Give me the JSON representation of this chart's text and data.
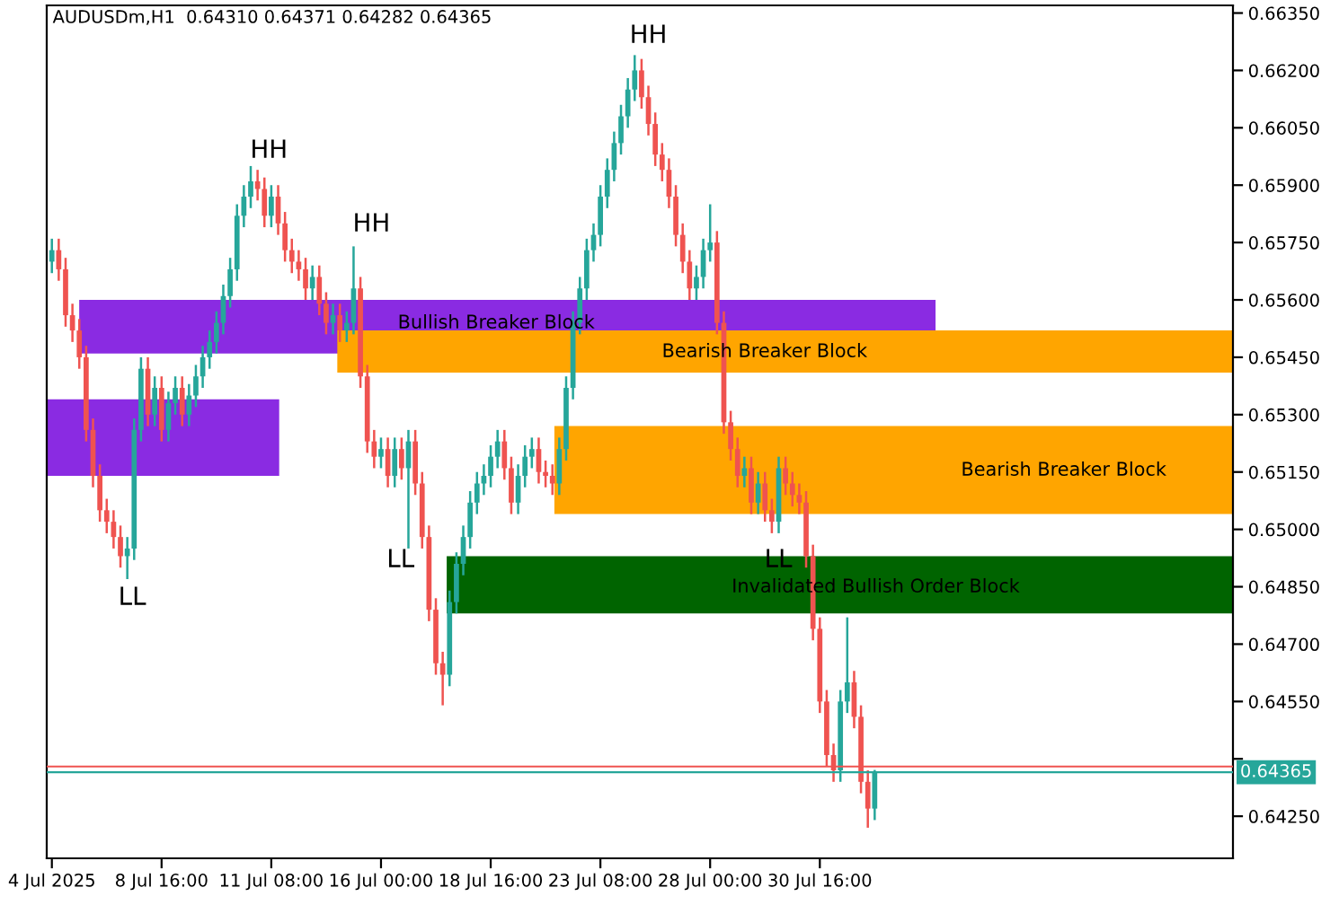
{
  "chart_data": {
    "type": "candlestick",
    "title": "AUDUSDm,H1  0.64310 0.64371 0.64282 0.64365",
    "categories": [
      "4 Jul 2025",
      null,
      null,
      null,
      null,
      null,
      null,
      null,
      null,
      null,
      null,
      null,
      null,
      null,
      null,
      null,
      "8 Jul 16:00",
      null,
      null,
      null,
      null,
      null,
      null,
      null,
      null,
      null,
      null,
      null,
      null,
      null,
      null,
      null,
      "11 Jul 08:00",
      null,
      null,
      null,
      null,
      null,
      null,
      null,
      null,
      null,
      null,
      null,
      null,
      null,
      null,
      null,
      "16 Jul 00:00",
      null,
      null,
      null,
      null,
      null,
      null,
      null,
      null,
      null,
      null,
      null,
      null,
      null,
      null,
      null,
      "18 Jul 16:00",
      null,
      null,
      null,
      null,
      null,
      null,
      null,
      null,
      null,
      null,
      null,
      null,
      null,
      null,
      null,
      "23 Jul 08:00",
      null,
      null,
      null,
      null,
      null,
      null,
      null,
      null,
      null,
      null,
      null,
      null,
      null,
      null,
      null,
      "28 Jul 00:00",
      null,
      null,
      null,
      null,
      null,
      null,
      null,
      null,
      null,
      null,
      null,
      null,
      null,
      null,
      null,
      "30 Jul 16:00",
      null,
      null,
      null,
      null,
      null,
      null,
      null,
      null,
      null,
      null,
      null,
      null,
      null,
      null,
      null,
      null,
      null,
      null,
      null,
      null,
      null,
      null,
      null,
      null,
      null,
      null,
      null,
      null,
      null,
      null,
      null,
      null,
      null,
      null,
      null,
      null,
      null,
      null,
      null,
      null,
      null,
      null,
      null,
      null,
      null,
      null,
      null,
      null,
      null,
      null,
      null,
      null,
      null,
      null,
      null,
      null,
      null,
      null,
      null,
      null
    ],
    "ohlc": [
      [
        0.657,
        0.6576,
        0.6567,
        0.6573
      ],
      [
        0.6573,
        0.6576,
        0.6565,
        0.6568
      ],
      [
        0.6568,
        0.6571,
        0.6553,
        0.6556
      ],
      [
        0.6556,
        0.6559,
        0.6549,
        0.6552
      ],
      [
        0.6552,
        0.6555,
        0.6542,
        0.6545
      ],
      [
        0.6545,
        0.6548,
        0.6523,
        0.6526
      ],
      [
        0.6526,
        0.6529,
        0.6511,
        0.6514
      ],
      [
        0.6514,
        0.6517,
        0.6502,
        0.6505
      ],
      [
        0.6505,
        0.6508,
        0.6499,
        0.6502
      ],
      [
        0.6502,
        0.6505,
        0.6495,
        0.6498
      ],
      [
        0.6498,
        0.6501,
        0.649,
        0.6493
      ],
      [
        0.6493,
        0.6498,
        0.6487,
        0.6495
      ],
      [
        0.6495,
        0.6529,
        0.6492,
        0.6526
      ],
      [
        0.6526,
        0.6545,
        0.6523,
        0.6542
      ],
      [
        0.6542,
        0.6545,
        0.6527,
        0.653
      ],
      [
        0.653,
        0.654,
        0.6527,
        0.6537
      ],
      [
        0.6537,
        0.654,
        0.6523,
        0.6526
      ],
      [
        0.6526,
        0.6536,
        0.6523,
        0.6533
      ],
      [
        0.6533,
        0.654,
        0.653,
        0.6537
      ],
      [
        0.6537,
        0.654,
        0.6527,
        0.653
      ],
      [
        0.653,
        0.6538,
        0.6527,
        0.6535
      ],
      [
        0.6535,
        0.6543,
        0.6532,
        0.654
      ],
      [
        0.654,
        0.6548,
        0.6537,
        0.6545
      ],
      [
        0.6545,
        0.6552,
        0.6542,
        0.6549
      ],
      [
        0.6549,
        0.6557,
        0.6546,
        0.6554
      ],
      [
        0.6554,
        0.6564,
        0.6551,
        0.6561
      ],
      [
        0.6561,
        0.6571,
        0.6558,
        0.6568
      ],
      [
        0.6568,
        0.6585,
        0.6565,
        0.6582
      ],
      [
        0.6582,
        0.659,
        0.6579,
        0.6587
      ],
      [
        0.6587,
        0.6595,
        0.6584,
        0.6591
      ],
      [
        0.6591,
        0.6594,
        0.6586,
        0.6589
      ],
      [
        0.6589,
        0.6592,
        0.6579,
        0.6582
      ],
      [
        0.6582,
        0.659,
        0.6579,
        0.6587
      ],
      [
        0.6587,
        0.659,
        0.6577,
        0.658
      ],
      [
        0.658,
        0.6583,
        0.657,
        0.6573
      ],
      [
        0.6573,
        0.6576,
        0.6567,
        0.657
      ],
      [
        0.657,
        0.6573,
        0.6565,
        0.6568
      ],
      [
        0.6568,
        0.6571,
        0.656,
        0.6563
      ],
      [
        0.6563,
        0.6569,
        0.656,
        0.6566
      ],
      [
        0.6566,
        0.6569,
        0.6556,
        0.6559
      ],
      [
        0.6559,
        0.6562,
        0.6551,
        0.6554
      ],
      [
        0.6554,
        0.6559,
        0.6551,
        0.6556
      ],
      [
        0.6556,
        0.6559,
        0.6549,
        0.6552
      ],
      [
        0.6552,
        0.6557,
        0.6549,
        0.6554
      ],
      [
        0.6554,
        0.6574,
        0.6551,
        0.6563
      ],
      [
        0.6563,
        0.6566,
        0.6537,
        0.654
      ],
      [
        0.654,
        0.6543,
        0.652,
        0.6523
      ],
      [
        0.6523,
        0.6526,
        0.6516,
        0.6519
      ],
      [
        0.6519,
        0.6524,
        0.6516,
        0.6521
      ],
      [
        0.6521,
        0.6524,
        0.6511,
        0.6514
      ],
      [
        0.6514,
        0.6524,
        0.6511,
        0.6521
      ],
      [
        0.6521,
        0.6524,
        0.6513,
        0.6516
      ],
      [
        0.6516,
        0.6526,
        0.6495,
        0.6523
      ],
      [
        0.6523,
        0.6526,
        0.6509,
        0.6512
      ],
      [
        0.6512,
        0.6515,
        0.6495,
        0.6498
      ],
      [
        0.6498,
        0.6501,
        0.6476,
        0.6479
      ],
      [
        0.6479,
        0.6482,
        0.6462,
        0.6465
      ],
      [
        0.6465,
        0.6468,
        0.6454,
        0.6462
      ],
      [
        0.6462,
        0.6484,
        0.6459,
        0.6481
      ],
      [
        0.6481,
        0.6494,
        0.6478,
        0.6491
      ],
      [
        0.6491,
        0.6501,
        0.6488,
        0.6498
      ],
      [
        0.6498,
        0.651,
        0.6495,
        0.6507
      ],
      [
        0.6507,
        0.6515,
        0.6504,
        0.6512
      ],
      [
        0.6512,
        0.6517,
        0.6509,
        0.6514
      ],
      [
        0.6514,
        0.6522,
        0.6511,
        0.6519
      ],
      [
        0.6519,
        0.6526,
        0.6516,
        0.6523
      ],
      [
        0.6523,
        0.6526,
        0.6513,
        0.6516
      ],
      [
        0.6516,
        0.6519,
        0.6504,
        0.6507
      ],
      [
        0.6507,
        0.6517,
        0.6504,
        0.6514
      ],
      [
        0.6514,
        0.6522,
        0.6511,
        0.6519
      ],
      [
        0.6519,
        0.6524,
        0.6516,
        0.6521
      ],
      [
        0.6521,
        0.6524,
        0.6512,
        0.6515
      ],
      [
        0.6515,
        0.6518,
        0.6511,
        0.6514
      ],
      [
        0.6514,
        0.6517,
        0.6509,
        0.6512
      ],
      [
        0.6512,
        0.6524,
        0.6509,
        0.6521
      ],
      [
        0.6521,
        0.654,
        0.6518,
        0.6537
      ],
      [
        0.6537,
        0.6557,
        0.6534,
        0.6554
      ],
      [
        0.6554,
        0.6566,
        0.6551,
        0.6563
      ],
      [
        0.6563,
        0.6576,
        0.656,
        0.6573
      ],
      [
        0.6573,
        0.658,
        0.657,
        0.6577
      ],
      [
        0.6577,
        0.659,
        0.6574,
        0.6587
      ],
      [
        0.6587,
        0.6597,
        0.6584,
        0.6594
      ],
      [
        0.6594,
        0.6604,
        0.6591,
        0.6601
      ],
      [
        0.6601,
        0.6611,
        0.6598,
        0.6608
      ],
      [
        0.6608,
        0.6618,
        0.6605,
        0.6615
      ],
      [
        0.6615,
        0.6624,
        0.6612,
        0.662
      ],
      [
        0.662,
        0.6623,
        0.661,
        0.6613
      ],
      [
        0.6613,
        0.6616,
        0.6603,
        0.6606
      ],
      [
        0.6606,
        0.6609,
        0.6595,
        0.6598
      ],
      [
        0.6598,
        0.6601,
        0.6591,
        0.6594
      ],
      [
        0.6594,
        0.6597,
        0.6584,
        0.6587
      ],
      [
        0.6587,
        0.659,
        0.6574,
        0.6577
      ],
      [
        0.6577,
        0.658,
        0.6567,
        0.657
      ],
      [
        0.657,
        0.6573,
        0.656,
        0.6563
      ],
      [
        0.6563,
        0.6569,
        0.656,
        0.6566
      ],
      [
        0.6566,
        0.6576,
        0.6563,
        0.6573
      ],
      [
        0.6573,
        0.6585,
        0.657,
        0.6575
      ],
      [
        0.6575,
        0.6578,
        0.6551,
        0.6554
      ],
      [
        0.6554,
        0.6557,
        0.6525,
        0.6528
      ],
      [
        0.6528,
        0.6531,
        0.6518,
        0.6521
      ],
      [
        0.6521,
        0.6524,
        0.6511,
        0.6514
      ],
      [
        0.6514,
        0.6519,
        0.6511,
        0.6516
      ],
      [
        0.6516,
        0.6519,
        0.6504,
        0.6507
      ],
      [
        0.6507,
        0.6515,
        0.6504,
        0.6512
      ],
      [
        0.6512,
        0.6515,
        0.6502,
        0.6505
      ],
      [
        0.6505,
        0.6508,
        0.6499,
        0.6502
      ],
      [
        0.6502,
        0.6519,
        0.6499,
        0.6516
      ],
      [
        0.6516,
        0.6519,
        0.6509,
        0.6512
      ],
      [
        0.6512,
        0.6515,
        0.6506,
        0.6509
      ],
      [
        0.6509,
        0.6512,
        0.6504,
        0.6507
      ],
      [
        0.6507,
        0.651,
        0.649,
        0.6493
      ],
      [
        0.6493,
        0.6496,
        0.6471,
        0.6474
      ],
      [
        0.6474,
        0.6477,
        0.6452,
        0.6455
      ],
      [
        0.6455,
        0.6458,
        0.6438,
        0.6441
      ],
      [
        0.6441,
        0.6444,
        0.6434,
        0.6437
      ],
      [
        0.6437,
        0.6458,
        0.6434,
        0.6455
      ],
      [
        0.6455,
        0.6477,
        0.6452,
        0.646
      ],
      [
        0.646,
        0.6463,
        0.6448,
        0.6451
      ],
      [
        0.6451,
        0.6454,
        0.6431,
        0.6434
      ],
      [
        0.6434,
        0.6437,
        0.6422,
        0.6427
      ],
      [
        0.6427,
        0.64371,
        0.6424,
        0.64365
      ],
      null,
      null,
      null,
      null,
      null,
      null,
      null,
      null,
      null,
      null,
      null,
      null,
      null,
      null,
      null,
      null,
      null,
      null,
      null,
      null,
      null,
      null,
      null,
      null,
      null,
      null,
      null,
      null,
      null,
      null,
      null,
      null,
      null,
      null,
      null,
      null,
      null,
      null,
      null,
      null,
      null,
      null,
      null,
      null,
      null,
      null,
      null,
      null,
      null,
      null,
      null,
      null
    ],
    "colors": [
      "#26a69a",
      "#ef5350",
      "#ef5350",
      "#ef5350",
      "#ef5350",
      "#ef5350",
      "#ef5350",
      "#ef5350",
      "#ef5350",
      "#ef5350",
      "#ef5350",
      "#26a69a",
      "#26a69a",
      "#26a69a",
      "#ef5350",
      "#26a69a",
      "#ef5350",
      "#26a69a",
      "#26a69a",
      "#ef5350",
      "#26a69a",
      "#26a69a",
      "#26a69a",
      "#26a69a",
      "#26a69a",
      "#26a69a",
      "#26a69a",
      "#26a69a",
      "#26a69a",
      "#26a69a",
      "#ef5350",
      "#ef5350",
      "#26a69a",
      "#ef5350",
      "#ef5350",
      "#ef5350",
      "#ef5350",
      "#ef5350",
      "#26a69a",
      "#ef5350",
      "#ef5350",
      "#26a69a",
      "#ef5350",
      "#26a69a",
      "#26a69a",
      "#ef5350",
      "#ef5350",
      "#ef5350",
      "#26a69a",
      "#ef5350",
      "#26a69a",
      "#ef5350",
      "#26a69a",
      "#ef5350",
      "#ef5350",
      "#ef5350",
      "#ef5350",
      "#ef5350",
      "#26a69a",
      "#26a69a",
      "#26a69a",
      "#26a69a",
      "#26a69a",
      "#26a69a",
      "#26a69a",
      "#26a69a",
      "#ef5350",
      "#ef5350",
      "#26a69a",
      "#26a69a",
      "#26a69a",
      "#ef5350",
      "#ef5350",
      "#ef5350",
      "#26a69a",
      "#26a69a",
      "#26a69a",
      "#26a69a",
      "#26a69a",
      "#26a69a",
      "#26a69a",
      "#26a69a",
      "#26a69a",
      "#26a69a",
      "#26a69a",
      "#26a69a",
      "#ef5350",
      "#ef5350",
      "#ef5350",
      "#ef5350",
      "#ef5350",
      "#ef5350",
      "#ef5350",
      "#ef5350",
      "#26a69a",
      "#26a69a",
      "#26a69a",
      "#ef5350",
      "#ef5350",
      "#ef5350",
      "#ef5350",
      "#26a69a",
      "#ef5350",
      "#26a69a",
      "#ef5350",
      "#ef5350",
      "#26a69a",
      "#ef5350",
      "#ef5350",
      "#ef5350",
      "#ef5350",
      "#ef5350",
      "#ef5350",
      "#ef5350",
      "#ef5350",
      "#26a69a",
      "#26a69a",
      "#ef5350",
      "#ef5350",
      "#ef5350",
      "#26a69a",
      null,
      null,
      null,
      null,
      null,
      null,
      null,
      null,
      null,
      null,
      null,
      null,
      null,
      null,
      null,
      null,
      null,
      null,
      null,
      null,
      null,
      null,
      null,
      null,
      null,
      null,
      null,
      null,
      null,
      null,
      null,
      null,
      null,
      null,
      null,
      null,
      null,
      null,
      null,
      null,
      null,
      null,
      null,
      null,
      null,
      null,
      null,
      null,
      null,
      null,
      null,
      null
    ],
    "ylim": [
      0.6414,
      0.6637
    ],
    "yticks": [
      {
        "value": 0.6635,
        "label": "0.66350"
      },
      {
        "value": 0.662,
        "label": "0.66200"
      },
      {
        "value": 0.6605,
        "label": "0.66050"
      },
      {
        "value": 0.659,
        "label": "0.65900"
      },
      {
        "value": 0.6575,
        "label": "0.65750"
      },
      {
        "value": 0.656,
        "label": "0.65600"
      },
      {
        "value": 0.6545,
        "label": "0.65450"
      },
      {
        "value": 0.653,
        "label": "0.65300"
      },
      {
        "value": 0.6515,
        "label": "0.65150"
      },
      {
        "value": 0.65,
        "label": "0.65000"
      },
      {
        "value": 0.6485,
        "label": "0.64850"
      },
      {
        "value": 0.647,
        "label": "0.64700"
      },
      {
        "value": 0.6455,
        "label": "0.64550"
      },
      {
        "value": 0.644,
        "label": null
      },
      {
        "value": 0.6425,
        "label": "0.64250"
      }
    ],
    "bands": [
      {
        "axis": "y",
        "from": 0.6546,
        "to": 0.656,
        "color": "#8a2be2"
      },
      {
        "axis": "y",
        "from": 0.6541,
        "to": 0.6552,
        "color": "#ffa500"
      },
      {
        "axis": "y",
        "from": 0.6514,
        "to": 0.6534,
        "color": "#8a2be2"
      },
      {
        "axis": "y",
        "from": 0.6504,
        "to": 0.6527,
        "color": "#ffa500"
      },
      {
        "axis": "y",
        "from": 0.6478,
        "to": 0.6493,
        "color": "#006400"
      }
    ],
    "ref_lines": [
      {
        "axis": "y",
        "value": 0.6438,
        "color": "#ef5350"
      },
      {
        "axis": "y",
        "value": 0.64365,
        "label": "0.64365",
        "color": "#26a69a"
      }
    ],
    "annotations": [
      "HH",
      "HH",
      "HH",
      "LL",
      "LL",
      "LL",
      "Bullish Breaker Block",
      "Bearish Breaker Block",
      "Bearish Breaker Block",
      "Invalidated Bullish Order Block"
    ]
  }
}
